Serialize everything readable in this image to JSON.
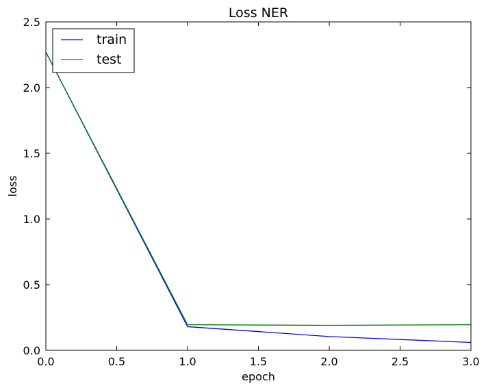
{
  "chart_data": {
    "type": "line",
    "title": "Loss NER",
    "xlabel": "epoch",
    "ylabel": "loss",
    "xlim": [
      0,
      3
    ],
    "ylim": [
      0,
      2.5
    ],
    "xticks": [
      "0.0",
      "0.5",
      "1.0",
      "1.5",
      "2.0",
      "2.5",
      "3.0"
    ],
    "yticks": [
      "0.0",
      "0.5",
      "1.0",
      "1.5",
      "2.0",
      "2.5"
    ],
    "grid": false,
    "legend": {
      "location": "upper-left",
      "entries": [
        "train",
        "test"
      ]
    },
    "series": [
      {
        "name": "train",
        "color": "#0000ff",
        "x": [
          0,
          1,
          2,
          3
        ],
        "y": [
          2.27,
          0.18,
          0.105,
          0.06
        ]
      },
      {
        "name": "test",
        "color": "#008000",
        "x": [
          0,
          1,
          2,
          3
        ],
        "y": [
          2.27,
          0.195,
          0.19,
          0.195
        ]
      }
    ]
  }
}
